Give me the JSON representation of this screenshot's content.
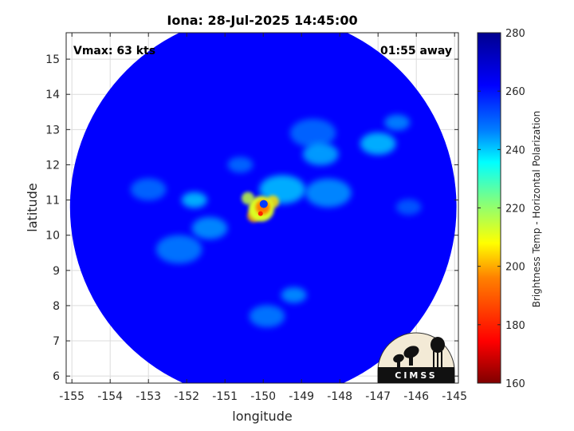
{
  "chart_data": {
    "type": "heatmap",
    "title": "Iona: 28-Jul-2025 14:45:00",
    "xlabel": "longitude",
    "ylabel": "latitude",
    "xlim": [
      -155.15,
      -144.9
    ],
    "ylim": [
      5.8,
      15.75
    ],
    "x_ticks": [
      -155,
      -154,
      -153,
      -152,
      -151,
      -150,
      -149,
      -148,
      -147,
      -146,
      -145
    ],
    "x_tick_labels": [
      "-155",
      "-154",
      "-153",
      "-152",
      "-151",
      "-150",
      "-149",
      "-148",
      "-147",
      "-146",
      "-145"
    ],
    "y_ticks": [
      6,
      7,
      8,
      9,
      10,
      11,
      12,
      13,
      14,
      15
    ],
    "y_tick_labels": [
      "6",
      "7",
      "8",
      "9",
      "10",
      "11",
      "12",
      "13",
      "14",
      "15"
    ],
    "grid": true,
    "annotations": {
      "top_left": "Vmax: 63 kts",
      "top_right": "01:55 away"
    },
    "swath": {
      "center_lon": -150.0,
      "center_lat": 10.8,
      "radius_deg": 5.05,
      "background_value": 262
    },
    "storm_center": {
      "lon": -150.05,
      "lat": 10.75
    },
    "features": [
      {
        "lon": -150.05,
        "lat": 10.75,
        "value": 185
      },
      {
        "lon": -149.75,
        "lat": 10.95,
        "value": 205
      },
      {
        "lon": -150.25,
        "lat": 10.55,
        "value": 200
      },
      {
        "lon": -150.4,
        "lat": 11.05,
        "value": 215
      },
      {
        "lon": -149.5,
        "lat": 11.3,
        "value": 240
      },
      {
        "lon": -151.8,
        "lat": 11.0,
        "value": 240
      },
      {
        "lon": -151.4,
        "lat": 10.2,
        "value": 244
      },
      {
        "lon": -148.5,
        "lat": 12.3,
        "value": 242
      },
      {
        "lon": -148.3,
        "lat": 11.2,
        "value": 244
      },
      {
        "lon": -147.0,
        "lat": 12.6,
        "value": 240
      },
      {
        "lon": -146.5,
        "lat": 13.2,
        "value": 245
      },
      {
        "lon": -149.2,
        "lat": 8.3,
        "value": 244
      },
      {
        "lon": -149.9,
        "lat": 7.7,
        "value": 246
      },
      {
        "lon": -153.0,
        "lat": 11.3,
        "value": 248
      },
      {
        "lon": -152.2,
        "lat": 9.6,
        "value": 246
      },
      {
        "lon": -148.7,
        "lat": 12.9,
        "value": 248
      },
      {
        "lon": -150.6,
        "lat": 12.0,
        "value": 248
      },
      {
        "lon": -146.2,
        "lat": 10.8,
        "value": 250
      }
    ],
    "colorbar": {
      "title": "Brightness Temp - Horizontal Polarization",
      "min": 160,
      "max": 280,
      "ticks": [
        160,
        180,
        200,
        220,
        240,
        260,
        280
      ],
      "tick_labels": [
        "160",
        "180",
        "200",
        "220",
        "240",
        "260",
        "280"
      ],
      "colormap": "jet-reversed"
    }
  },
  "logo": {
    "text": "CIMSS"
  }
}
